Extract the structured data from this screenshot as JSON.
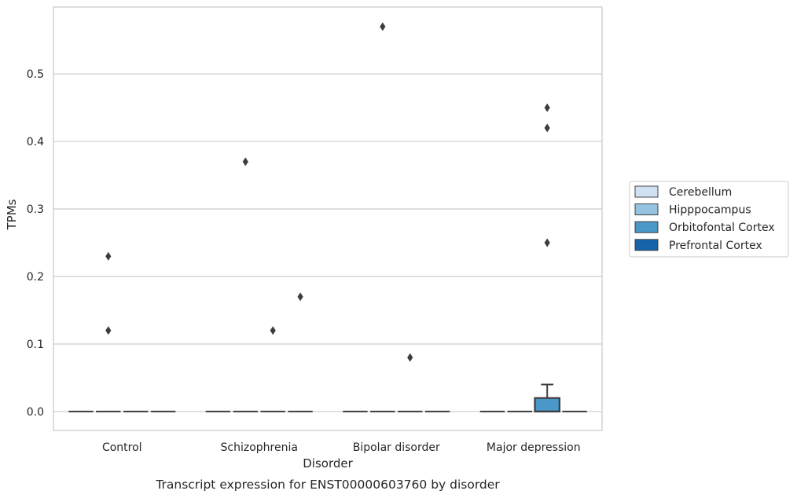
{
  "chart_data": {
    "type": "box",
    "caption": "Transcript expression for ENST00000603760 by disorder",
    "xlabel": "Disorder",
    "ylabel": "TPMs",
    "ylim": [
      -0.028,
      0.599
    ],
    "yticks": [
      0.0,
      0.1,
      0.2,
      0.3,
      0.4,
      0.5
    ],
    "ytick_labels": [
      "0.0",
      "0.1",
      "0.2",
      "0.3",
      "0.4",
      "0.5"
    ],
    "grid": true,
    "legend_placement": "right",
    "categories": [
      "Control",
      "Schizophrenia",
      "Bipolar disorder",
      "Major depression"
    ],
    "series": [
      {
        "name": "Cerebellum",
        "color": "#d0e1f2",
        "boxes": [
          {
            "category": "Control",
            "q1": 0,
            "median": 0,
            "q3": 0,
            "whisker_low": 0,
            "whisker_high": 0,
            "outliers": []
          },
          {
            "category": "Schizophrenia",
            "q1": 0,
            "median": 0,
            "q3": 0,
            "whisker_low": 0,
            "whisker_high": 0,
            "outliers": []
          },
          {
            "category": "Bipolar disorder",
            "q1": 0,
            "median": 0,
            "q3": 0,
            "whisker_low": 0,
            "whisker_high": 0,
            "outliers": []
          },
          {
            "category": "Major depression",
            "q1": 0,
            "median": 0,
            "q3": 0,
            "whisker_low": 0,
            "whisker_high": 0,
            "outliers": []
          }
        ]
      },
      {
        "name": "Hipppocampus",
        "color": "#94c4df",
        "boxes": [
          {
            "category": "Control",
            "q1": 0,
            "median": 0,
            "q3": 0,
            "whisker_low": 0,
            "whisker_high": 0,
            "outliers": [
              0.23,
              0.12
            ]
          },
          {
            "category": "Schizophrenia",
            "q1": 0,
            "median": 0,
            "q3": 0,
            "whisker_low": 0,
            "whisker_high": 0,
            "outliers": [
              0.37
            ]
          },
          {
            "category": "Bipolar disorder",
            "q1": 0,
            "median": 0,
            "q3": 0,
            "whisker_low": 0,
            "whisker_high": 0,
            "outliers": [
              0.57
            ]
          },
          {
            "category": "Major depression",
            "q1": 0,
            "median": 0,
            "q3": 0,
            "whisker_low": 0,
            "whisker_high": 0,
            "outliers": []
          }
        ]
      },
      {
        "name": "Orbitofontal Cortex",
        "color": "#4a98c9",
        "boxes": [
          {
            "category": "Control",
            "q1": 0,
            "median": 0,
            "q3": 0,
            "whisker_low": 0,
            "whisker_high": 0,
            "outliers": []
          },
          {
            "category": "Schizophrenia",
            "q1": 0,
            "median": 0,
            "q3": 0,
            "whisker_low": 0,
            "whisker_high": 0,
            "outliers": [
              0.12
            ]
          },
          {
            "category": "Bipolar disorder",
            "q1": 0,
            "median": 0,
            "q3": 0,
            "whisker_low": 0,
            "whisker_high": 0,
            "outliers": [
              0.08
            ]
          },
          {
            "category": "Major depression",
            "q1": 0,
            "median": 0,
            "q3": 0.02,
            "whisker_low": 0,
            "whisker_high": 0.04,
            "outliers": [
              0.45,
              0.42,
              0.25
            ]
          }
        ]
      },
      {
        "name": "Prefrontal Cortex",
        "color": "#1764ab",
        "boxes": [
          {
            "category": "Control",
            "q1": 0,
            "median": 0,
            "q3": 0,
            "whisker_low": 0,
            "whisker_high": 0,
            "outliers": []
          },
          {
            "category": "Schizophrenia",
            "q1": 0,
            "median": 0,
            "q3": 0,
            "whisker_low": 0,
            "whisker_high": 0,
            "outliers": [
              0.17
            ]
          },
          {
            "category": "Bipolar disorder",
            "q1": 0,
            "median": 0,
            "q3": 0,
            "whisker_low": 0,
            "whisker_high": 0,
            "outliers": []
          },
          {
            "category": "Major depression",
            "q1": 0,
            "median": 0,
            "q3": 0,
            "whisker_low": 0,
            "whisker_high": 0,
            "outliers": []
          }
        ]
      }
    ]
  }
}
